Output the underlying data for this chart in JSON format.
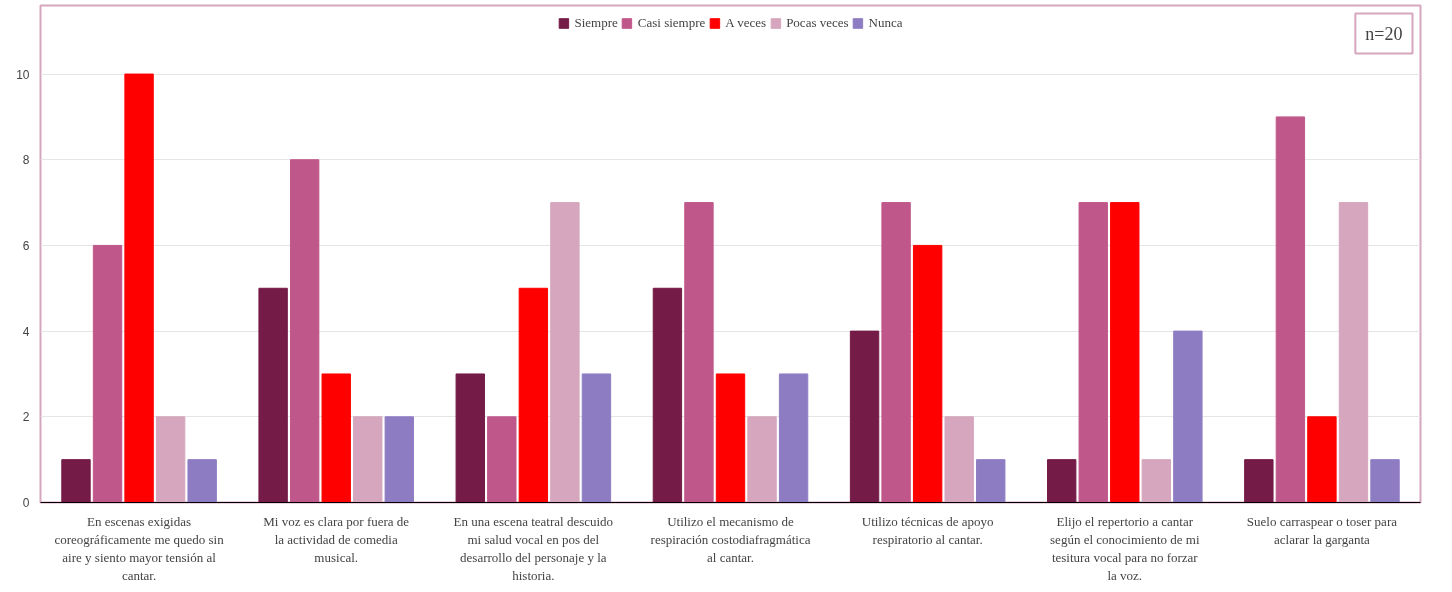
{
  "chart_data": {
    "type": "bar",
    "categories": [
      "En escenas exigidas coreográficamente me quedo sin aire y siento mayor tensión al cantar.",
      "Mi voz es clara por fuera de la actividad de comedia musical.",
      "En una escena teatral descuido mi salud vocal en pos del desarrollo del personaje y la historia.",
      "Utilizo el mecanismo de respiración costodiafragmática al cantar.",
      "Utilizo técnicas de apoyo respiratorio al cantar.",
      "Elijo el repertorio a cantar según el conocimiento de mi tesitura vocal para no forzar la voz.",
      "Suelo carraspear o toser para aclarar la garganta"
    ],
    "series": [
      {
        "name": "Siempre",
        "color": "#741b47",
        "values": [
          1,
          5,
          3,
          5,
          4,
          1,
          1
        ]
      },
      {
        "name": "Casi siempre",
        "color": "#c0578a",
        "values": [
          6,
          8,
          2,
          7,
          7,
          7,
          9
        ]
      },
      {
        "name": "A veces",
        "color": "#ff0000",
        "values": [
          10,
          3,
          5,
          3,
          6,
          7,
          2
        ]
      },
      {
        "name": "Pocas veces",
        "color": "#d5a6bd",
        "values": [
          2,
          2,
          7,
          2,
          2,
          1,
          7
        ]
      },
      {
        "name": "Nunca",
        "color": "#8e7cc3",
        "values": [
          1,
          2,
          3,
          3,
          1,
          4,
          1
        ]
      }
    ],
    "ylim": [
      0,
      11.6
    ],
    "yticks": [
      0,
      2,
      4,
      6,
      8,
      10
    ],
    "grid": "y",
    "legend": "top",
    "annotations": [
      "n=20"
    ]
  }
}
